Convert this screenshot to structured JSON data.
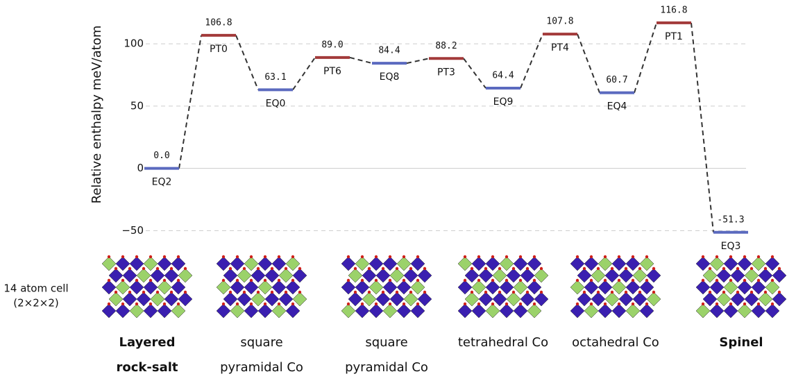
{
  "chart_data": {
    "type": "energy-profile",
    "y_label": "Relative enthalpy meV/atom",
    "categories": [
      "EQ2",
      "PT0",
      "EQ0",
      "PT6",
      "EQ8",
      "PT3",
      "EQ9",
      "PT4",
      "EQ4",
      "PT1",
      "EQ3"
    ],
    "values": [
      0.0,
      106.8,
      63.1,
      89.0,
      84.4,
      88.2,
      64.4,
      107.8,
      60.7,
      116.8,
      -51.3
    ],
    "value_labels": [
      "0.0",
      "106.8",
      "63.1",
      "89.0",
      "84.4",
      "88.2",
      "64.4",
      "107.8",
      "60.7",
      "116.8",
      "-51.3"
    ],
    "colors": [
      "#5b6abf",
      "#a33a3a",
      "#5b6abf",
      "#a33a3a",
      "#5b6abf",
      "#a33a3a",
      "#5b6abf",
      "#a33a3a",
      "#5b6abf",
      "#a33a3a",
      "#5b6abf"
    ],
    "ylim": [
      -57,
      124
    ],
    "yticks": [
      {
        "value": -50,
        "label": "−50"
      },
      0,
      50,
      100
    ],
    "grid": true
  },
  "cell_note": [
    "14 atom cell",
    "(2×2×2)"
  ],
  "structures": [
    {
      "lines": [
        "Layered",
        "rock-salt"
      ],
      "bold": true
    },
    {
      "lines": [
        "square",
        "pyramidal Co"
      ],
      "bold": false
    },
    {
      "lines": [
        "square",
        "pyramidal Co"
      ],
      "bold": false
    },
    {
      "lines": [
        "tetrahedral Co"
      ],
      "bold": false
    },
    {
      "lines": [
        "octahedral Co"
      ],
      "bold": false
    },
    {
      "lines": [
        "Spinel"
      ],
      "bold": true
    }
  ]
}
